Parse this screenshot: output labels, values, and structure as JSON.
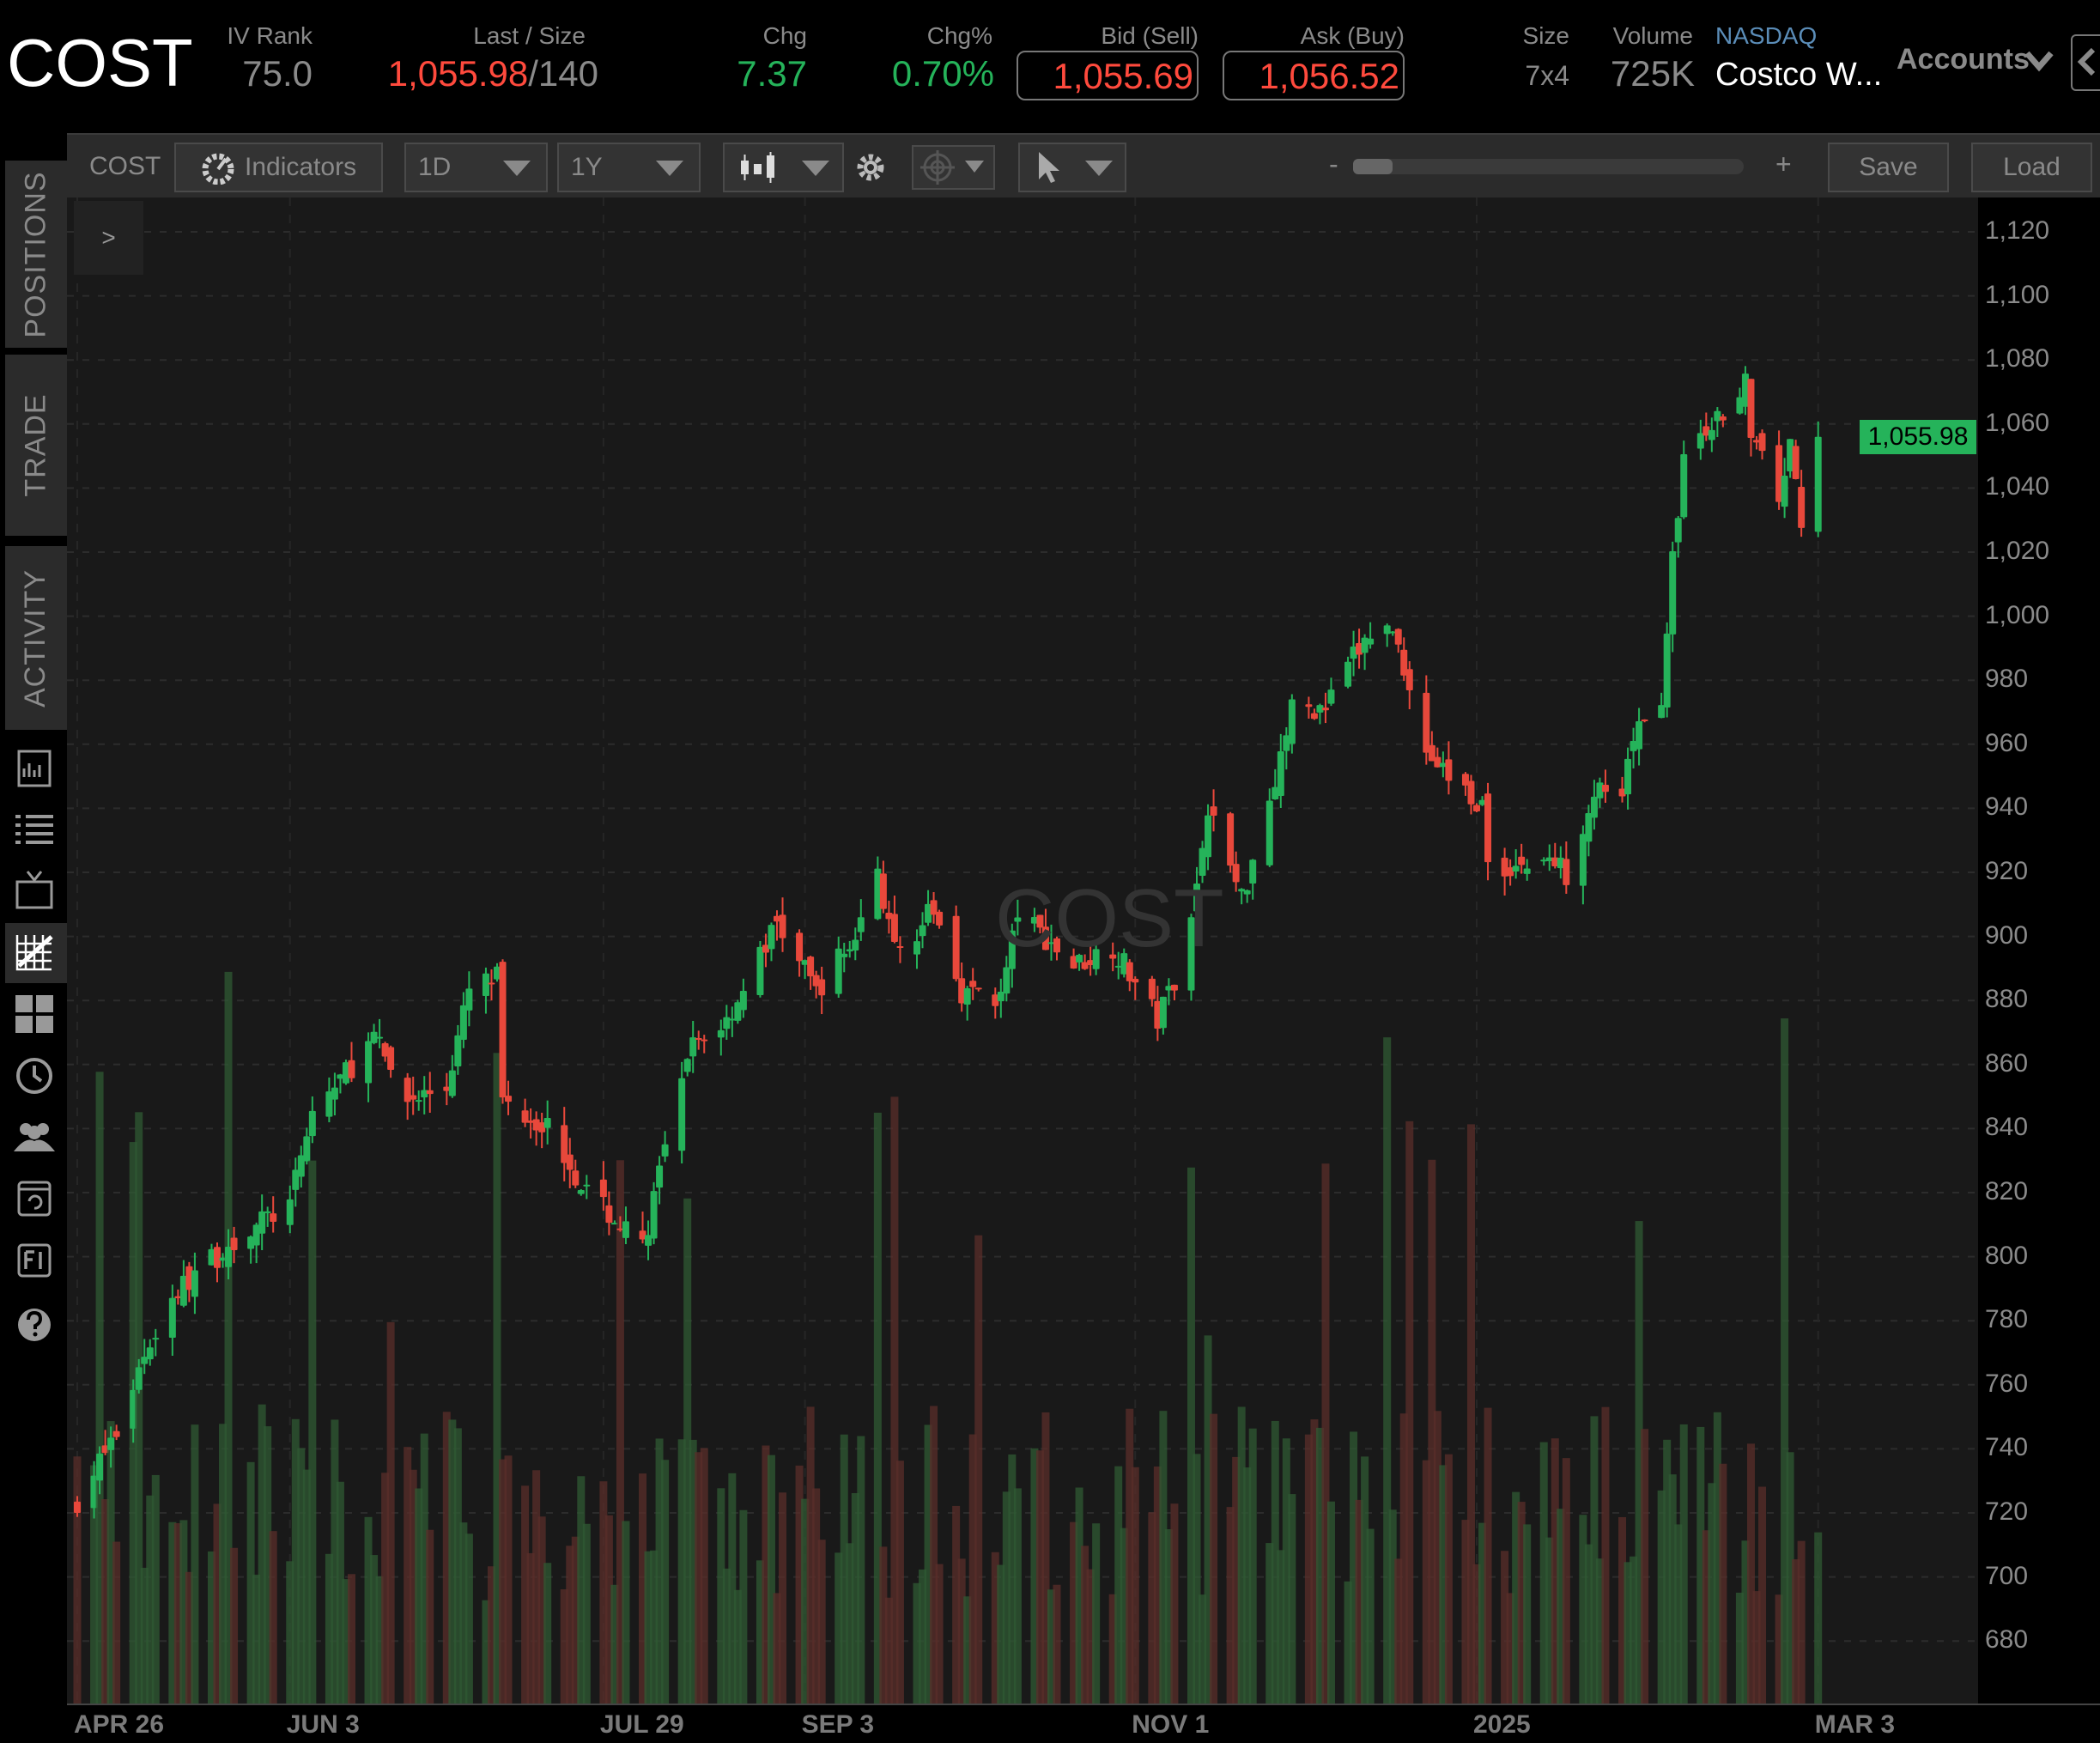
{
  "header": {
    "symbol": "COST",
    "iv_rank": {
      "label": "IV Rank",
      "value": "75.0"
    },
    "last_size": {
      "label": "Last / Size",
      "last": "1,055.98",
      "size": "/140"
    },
    "chg": {
      "label": "Chg",
      "value": "7.37"
    },
    "chg_pct": {
      "label": "Chg%",
      "value": "0.70%"
    },
    "bid": {
      "label": "Bid (Sell)",
      "value": "1,055.69"
    },
    "ask": {
      "label": "Ask (Buy)",
      "value": "1,056.52"
    },
    "size": {
      "label": "Size",
      "value": "7x4"
    },
    "volume": {
      "label": "Volume",
      "value": "725K"
    },
    "exchange": "NASDAQ",
    "company": "Costco W...",
    "accounts_label": "Accounts"
  },
  "toolbar": {
    "symbol": "COST",
    "indicators_label": "Indicators",
    "aggregation": "1D",
    "range": "1Y",
    "zoom_minus": "-",
    "zoom_plus": "+",
    "zoom_level": 0.05,
    "save_label": "Save",
    "load_label": "Load",
    "collapse_label": ">"
  },
  "sidebar": {
    "tabs": [
      "POSITIONS",
      "TRADE",
      "ACTIVITY"
    ],
    "icons": [
      "chart-box-icon",
      "list-icon",
      "tv-icon",
      "chart-grid-icon",
      "grid-icon",
      "clock-history-icon",
      "people-icon",
      "calendar-refresh-icon",
      "fi-icon",
      "help-icon"
    ]
  },
  "colors": {
    "up": "#25b35a",
    "down": "#e8483b",
    "price_tag": "#25b35a",
    "exchange": "#5b8db8"
  },
  "chart_data": {
    "type": "candlestick",
    "watermark": "COST",
    "last_price": "1,055.98",
    "ylim": [
      670,
      1130
    ],
    "y_ticks": [
      "1,120",
      "1,100",
      "1,080",
      "1,060",
      "1,040",
      "1,020",
      "1,000",
      "980",
      "960",
      "940",
      "920",
      "900",
      "880",
      "860",
      "840",
      "820",
      "800",
      "780",
      "760",
      "740",
      "720",
      "700",
      "680"
    ],
    "x_ticks": [
      "APR 26",
      "JUN 3",
      "JUL 29",
      "SEP 3",
      "NOV 1",
      "2025",
      "MAR 3"
    ],
    "grid": true,
    "volume_bars": true,
    "close_series": [
      [
        "2024-04-26",
        724
      ],
      [
        "2024-05-03",
        745
      ],
      [
        "2024-05-08",
        770
      ],
      [
        "2024-05-13",
        787
      ],
      [
        "2024-05-17",
        795
      ],
      [
        "2024-05-28",
        810
      ],
      [
        "2024-06-03",
        816
      ],
      [
        "2024-06-07",
        845
      ],
      [
        "2024-06-18",
        868
      ],
      [
        "2024-06-24",
        849
      ],
      [
        "2024-07-01",
        853
      ],
      [
        "2024-07-05",
        883
      ],
      [
        "2024-07-10",
        887
      ],
      [
        "2024-07-11",
        849
      ],
      [
        "2024-07-19",
        841
      ],
      [
        "2024-07-26",
        820
      ],
      [
        "2024-08-05",
        803
      ],
      [
        "2024-08-09",
        833
      ],
      [
        "2024-08-14",
        866
      ],
      [
        "2024-08-20",
        874
      ],
      [
        "2024-08-29",
        904
      ],
      [
        "2024-09-05",
        883
      ],
      [
        "2024-09-12",
        900
      ],
      [
        "2024-09-16",
        920
      ],
      [
        "2024-09-19",
        895
      ],
      [
        "2024-09-26",
        908
      ],
      [
        "2024-10-01",
        883
      ],
      [
        "2024-10-08",
        881
      ],
      [
        "2024-10-11",
        908
      ],
      [
        "2024-10-21",
        891
      ],
      [
        "2024-10-28",
        897
      ],
      [
        "2024-11-05",
        874
      ],
      [
        "2024-11-08",
        887
      ],
      [
        "2024-11-12",
        916
      ],
      [
        "2024-11-14",
        941
      ],
      [
        "2024-11-20",
        912
      ],
      [
        "2024-11-26",
        950
      ],
      [
        "2024-11-29",
        971
      ],
      [
        "2024-12-05",
        971
      ],
      [
        "2024-12-10",
        987
      ],
      [
        "2024-12-13",
        994
      ],
      [
        "2024-12-17",
        996
      ],
      [
        "2024-12-20",
        979
      ],
      [
        "2024-12-23",
        958
      ],
      [
        "2024-12-27",
        950
      ],
      [
        "2025-01-02",
        941
      ],
      [
        "2025-01-03",
        920
      ],
      [
        "2025-01-08",
        922
      ],
      [
        "2025-01-14",
        924
      ],
      [
        "2025-01-17",
        920
      ],
      [
        "2025-01-22",
        946
      ],
      [
        "2025-01-27",
        941
      ],
      [
        "2025-01-29",
        962
      ],
      [
        "2025-02-03",
        975
      ],
      [
        "2025-02-05",
        1017
      ],
      [
        "2025-02-07",
        1050
      ],
      [
        "2025-02-12",
        1058
      ],
      [
        "2025-02-18",
        1075
      ],
      [
        "2025-02-19",
        1054
      ],
      [
        "2025-02-24",
        1038
      ],
      [
        "2025-02-26",
        1054
      ],
      [
        "2025-02-28",
        1025
      ],
      [
        "2025-03-03",
        1055.98
      ]
    ]
  }
}
